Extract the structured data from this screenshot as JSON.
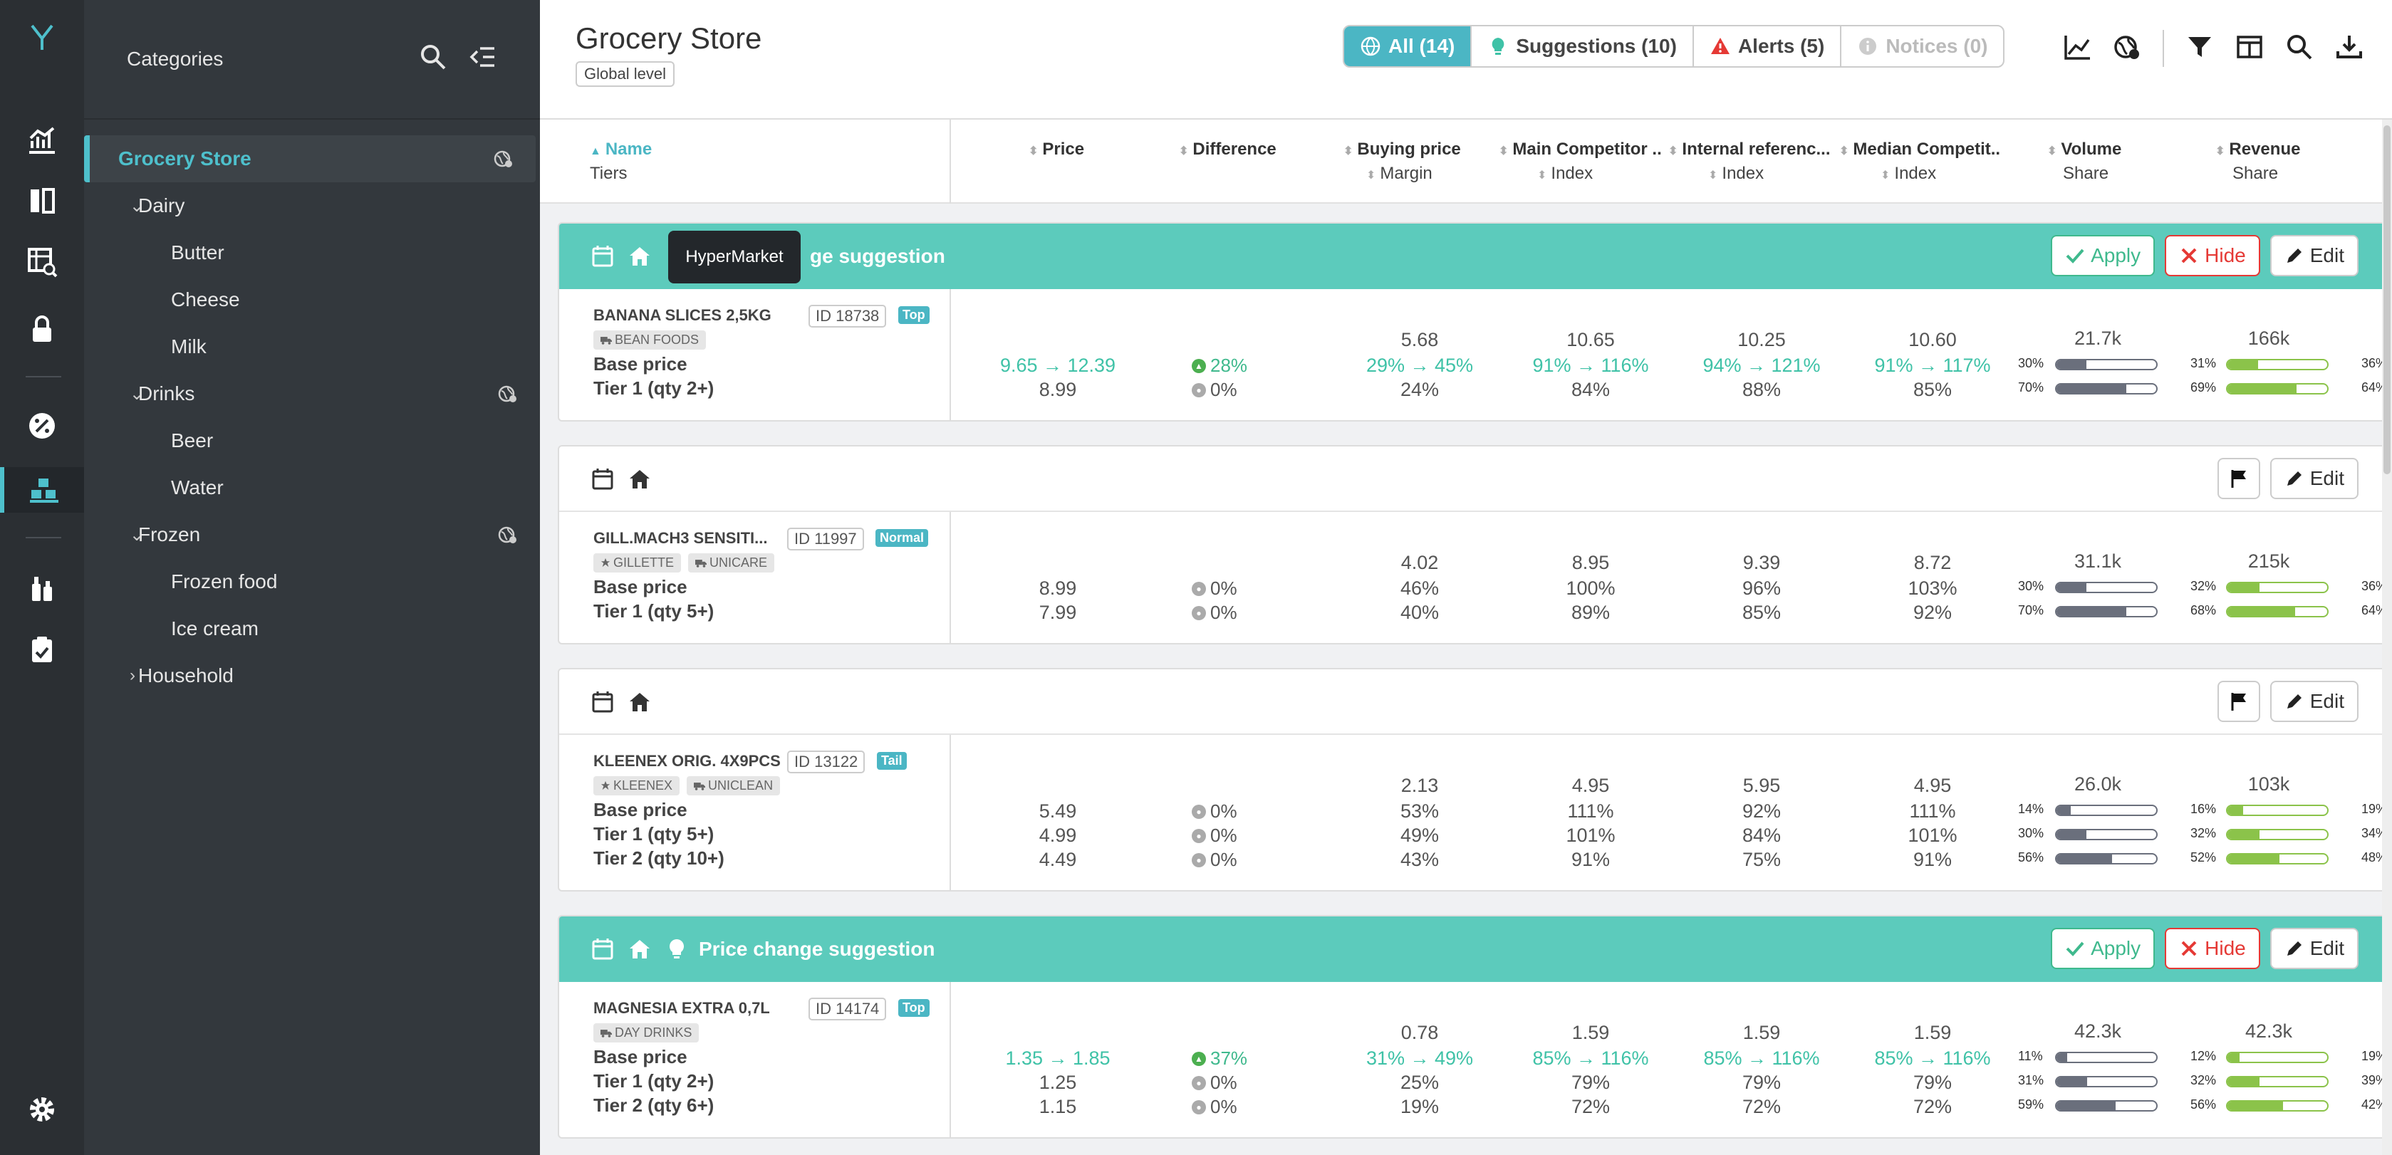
{
  "categories": {
    "title": "Categories",
    "tree": [
      {
        "label": "Grocery Store",
        "level": 0,
        "selected": true,
        "geo": true
      },
      {
        "label": "Dairy",
        "level": 1,
        "chevron": "down"
      },
      {
        "label": "Butter",
        "level": 2
      },
      {
        "label": "Cheese",
        "level": 2
      },
      {
        "label": "Milk",
        "level": 2
      },
      {
        "label": "Drinks",
        "level": 1,
        "chevron": "down",
        "geo": true
      },
      {
        "label": "Beer",
        "level": 2
      },
      {
        "label": "Water",
        "level": 2
      },
      {
        "label": "Frozen",
        "level": 1,
        "chevron": "down",
        "geo": true
      },
      {
        "label": "Frozen food",
        "level": 2
      },
      {
        "label": "Ice cream",
        "level": 2
      },
      {
        "label": "Household",
        "level": 1,
        "chevron": "right"
      }
    ]
  },
  "header": {
    "title": "Grocery Store",
    "level": "Global level",
    "filters": [
      {
        "label": "All (14)",
        "icon": "globe-icon",
        "active": true
      },
      {
        "label": "Suggestions (10)",
        "icon": "lightbulb-icon"
      },
      {
        "label": "Alerts (5)",
        "icon": "alert-icon"
      },
      {
        "label": "Notices (0)",
        "icon": "info-icon"
      }
    ]
  },
  "columns": {
    "name": "Name",
    "name_sub": "Tiers",
    "price": "Price",
    "difference": "Difference",
    "buying": "Buying price",
    "buying_sub": "Margin",
    "main_comp": "Main Competitor ..",
    "main_comp_sub": "Index",
    "internal": "Internal referenc...",
    "internal_sub": "Index",
    "median": "Median Competit..",
    "median_sub": "Index",
    "volume": "Volume",
    "volume_sub": "Share",
    "revenue": "Revenue",
    "revenue_sub": "Share"
  },
  "tooltip": "HyperMarket",
  "labels": {
    "apply": "Apply",
    "hide": "Hide",
    "edit": "Edit",
    "suggestion": "Price change suggestion",
    "tier_suggestion_partial": "ge suggestion"
  },
  "products": [
    {
      "name": "BANANA SLICES 2,5KG",
      "id": "ID 18738",
      "badge": "Top",
      "suggestion": true,
      "tags": [
        "BEAN FOODS"
      ],
      "tier_labels": [
        "Base price",
        "Tier 1 (qty 2+)"
      ],
      "price": [
        "9.65 → 12.39",
        "8.99"
      ],
      "diff": [
        "28%",
        "0%"
      ],
      "buying_top": "5.68",
      "buying": [
        "29% → 45%",
        "24%"
      ],
      "main_top": "10.65",
      "main": [
        "91% → 116%",
        "84%"
      ],
      "internal_top": "10.25",
      "internal": [
        "94% → 121%",
        "88%"
      ],
      "median_top": "10.60",
      "median": [
        "91% → 117%",
        "85%"
      ],
      "volume_top": "21.7k",
      "volume_pct": [
        "30%",
        "70%"
      ],
      "volume_fill": [
        0.3,
        0.7
      ],
      "revenue_top": "166k",
      "revenue_pct": [
        "31%",
        "69%"
      ],
      "revenue_fill": [
        0.31,
        0.69
      ],
      "right_pct": [
        "36%",
        "64%"
      ]
    },
    {
      "name": "GILL.MACH3 SENSITI...",
      "id": "ID 11997",
      "badge": "Normal",
      "suggestion": false,
      "tags": [
        "GILLETTE",
        "UNICARE"
      ],
      "tier_labels": [
        "Base price",
        "Tier 1 (qty 5+)"
      ],
      "price": [
        "8.99",
        "7.99"
      ],
      "diff": [
        "0%",
        "0%"
      ],
      "buying_top": "4.02",
      "buying": [
        "46%",
        "40%"
      ],
      "main_top": "8.95",
      "main": [
        "100%",
        "89%"
      ],
      "internal_top": "9.39",
      "internal": [
        "96%",
        "85%"
      ],
      "median_top": "8.72",
      "median": [
        "103%",
        "92%"
      ],
      "volume_top": "31.1k",
      "volume_pct": [
        "30%",
        "70%"
      ],
      "volume_fill": [
        0.3,
        0.7
      ],
      "revenue_top": "215k",
      "revenue_pct": [
        "32%",
        "68%"
      ],
      "revenue_fill": [
        0.32,
        0.68
      ],
      "right_pct": [
        "36%",
        "64%"
      ]
    },
    {
      "name": "KLEENEX ORIG. 4X9PCS",
      "id": "ID 13122",
      "badge": "Tail",
      "suggestion": false,
      "tags": [
        "KLEENEX",
        "UNICLEAN"
      ],
      "tier_labels": [
        "Base price",
        "Tier 1 (qty 5+)",
        "Tier 2 (qty 10+)"
      ],
      "price": [
        "5.49",
        "4.99",
        "4.49"
      ],
      "diff": [
        "0%",
        "0%",
        "0%"
      ],
      "buying_top": "2.13",
      "buying": [
        "53%",
        "49%",
        "43%"
      ],
      "main_top": "4.95",
      "main": [
        "111%",
        "101%",
        "91%"
      ],
      "internal_top": "5.95",
      "internal": [
        "92%",
        "84%",
        "75%"
      ],
      "median_top": "4.95",
      "median": [
        "111%",
        "101%",
        "91%"
      ],
      "volume_top": "26.0k",
      "volume_pct": [
        "14%",
        "30%",
        "56%"
      ],
      "volume_fill": [
        0.14,
        0.3,
        0.56
      ],
      "revenue_top": "103k",
      "revenue_pct": [
        "16%",
        "32%",
        "52%"
      ],
      "revenue_fill": [
        0.16,
        0.32,
        0.52
      ],
      "right_pct": [
        "19%",
        "34%",
        "48%"
      ]
    },
    {
      "name": "MAGNESIA EXTRA 0,7L",
      "id": "ID 14174",
      "badge": "Top",
      "suggestion": true,
      "tags": [
        "DAY DRINKS"
      ],
      "tier_labels": [
        "Base price",
        "Tier 1 (qty 2+)",
        "Tier 2 (qty 6+)"
      ],
      "price": [
        "1.35 → 1.85",
        "1.25",
        "1.15"
      ],
      "diff": [
        "37%",
        "0%",
        "0%"
      ],
      "buying_top": "0.78",
      "buying": [
        "31% → 49%",
        "25%",
        "19%"
      ],
      "main_top": "1.59",
      "main": [
        "85% → 116%",
        "79%",
        "72%"
      ],
      "internal_top": "1.59",
      "internal": [
        "85% → 116%",
        "79%",
        "72%"
      ],
      "median_top": "1.59",
      "median": [
        "85% → 116%",
        "79%",
        "72%"
      ],
      "volume_top": "42.3k",
      "volume_pct": [
        "11%",
        "31%",
        "59%"
      ],
      "volume_fill": [
        0.11,
        0.31,
        0.59
      ],
      "revenue_top": "42.3k",
      "revenue_pct": [
        "12%",
        "32%",
        "56%"
      ],
      "revenue_fill": [
        0.12,
        0.32,
        0.56
      ],
      "right_pct": [
        "19%",
        "39%",
        "42%"
      ]
    }
  ]
}
